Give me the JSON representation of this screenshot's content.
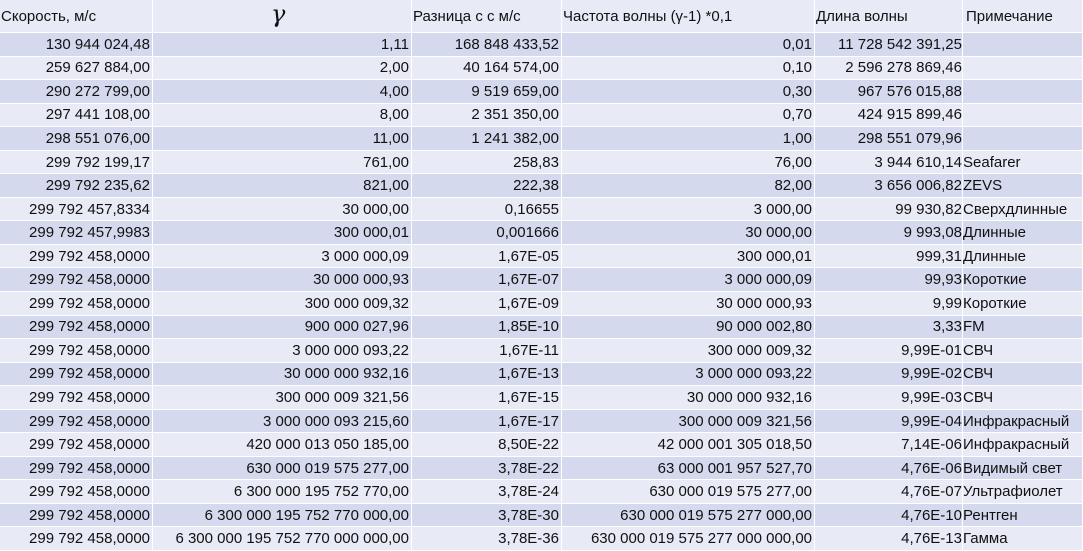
{
  "headers": {
    "speed": "Скорость, м/с",
    "gamma": "γ",
    "diff": "Разница с c м/с",
    "freq": "Частота волны (γ-1) *0,1",
    "wavelength": "Длина волны",
    "note": "Примечание"
  },
  "rows": [
    {
      "speed": "130 944 024,48",
      "gamma": "1,11",
      "diff": "168 848 433,52",
      "freq": "0,01",
      "wavelength": "11 728 542 391,25",
      "note": ""
    },
    {
      "speed": "259 627 884,00",
      "gamma": "2,00",
      "diff": "40 164 574,00",
      "freq": "0,10",
      "wavelength": "2 596 278 869,46",
      "note": ""
    },
    {
      "speed": "290 272 799,00",
      "gamma": "4,00",
      "diff": "9 519 659,00",
      "freq": "0,30",
      "wavelength": "967 576 015,88",
      "note": ""
    },
    {
      "speed": "297 441 108,00",
      "gamma": "8,00",
      "diff": "2 351 350,00",
      "freq": "0,70",
      "wavelength": "424 915 899,46",
      "note": ""
    },
    {
      "speed": "298 551 076,00",
      "gamma": "11,00",
      "diff": "1 241 382,00",
      "freq": "1,00",
      "wavelength": "298 551 079,96",
      "note": ""
    },
    {
      "speed": "299 792 199,17",
      "gamma": "761,00",
      "diff": "258,83",
      "freq": "76,00",
      "wavelength": "3 944 610,14",
      "note": "Seafarer"
    },
    {
      "speed": "299 792 235,62",
      "gamma": "821,00",
      "diff": "222,38",
      "freq": "82,00",
      "wavelength": "3 656 006,82",
      "note": "ZEVS"
    },
    {
      "speed": "299 792 457,8334",
      "gamma": "30 000,00",
      "diff": "0,16655",
      "freq": "3 000,00",
      "wavelength": "99 930,82",
      "note": "Сверхдлинные"
    },
    {
      "speed": "299 792 457,9983",
      "gamma": "300 000,01",
      "diff": "0,001666",
      "freq": "30 000,00",
      "wavelength": "9 993,08",
      "note": "Длинные"
    },
    {
      "speed": "299 792 458,0000",
      "gamma": "3 000 000,09",
      "diff": "1,67E-05",
      "freq": "300 000,01",
      "wavelength": "999,31",
      "note": "Длинные"
    },
    {
      "speed": "299 792 458,0000",
      "gamma": "30 000 000,93",
      "diff": "1,67E-07",
      "freq": "3 000 000,09",
      "wavelength": "99,93",
      "note": "Короткие"
    },
    {
      "speed": "299 792 458,0000",
      "gamma": "300 000 009,32",
      "diff": "1,67E-09",
      "freq": "30 000 000,93",
      "wavelength": "9,99",
      "note": "Короткие"
    },
    {
      "speed": "299 792 458,0000",
      "gamma": "900 000 027,96",
      "diff": "1,85E-10",
      "freq": "90 000 002,80",
      "wavelength": "3,33",
      "note": "FM"
    },
    {
      "speed": "299 792 458,0000",
      "gamma": "3 000 000 093,22",
      "diff": "1,67E-11",
      "freq": "300 000 009,32",
      "wavelength": "9,99E-01",
      "note": "СВЧ"
    },
    {
      "speed": "299 792 458,0000",
      "gamma": "30 000 000 932,16",
      "diff": "1,67E-13",
      "freq": "3 000 000 093,22",
      "wavelength": "9,99E-02",
      "note": "СВЧ"
    },
    {
      "speed": "299 792 458,0000",
      "gamma": "300 000 009 321,56",
      "diff": "1,67E-15",
      "freq": "30 000 000 932,16",
      "wavelength": "9,99E-03",
      "note": "СВЧ"
    },
    {
      "speed": "299 792 458,0000",
      "gamma": "3 000 000 093 215,60",
      "diff": "1,67E-17",
      "freq": "300 000 009 321,56",
      "wavelength": "9,99E-04",
      "note": "Инфракрасный"
    },
    {
      "speed": "299 792 458,0000",
      "gamma": "420 000 013 050 185,00",
      "diff": "8,50E-22",
      "freq": "42 000 001 305 018,50",
      "wavelength": "7,14E-06",
      "note": "Инфракрасный"
    },
    {
      "speed": "299 792 458,0000",
      "gamma": "630 000 019 575 277,00",
      "diff": "3,78E-22",
      "freq": "63 000 001 957 527,70",
      "wavelength": "4,76E-06",
      "note": "Видимый свет"
    },
    {
      "speed": "299 792 458,0000",
      "gamma": "6 300 000 195 752 770,00",
      "diff": "3,78E-24",
      "freq": "630 000 019 575 277,00",
      "wavelength": "4,76E-07",
      "note": "Ультрафиолет"
    },
    {
      "speed": "299 792 458,0000",
      "gamma": "6 300 000 195 752 770 000,00",
      "diff": "3,78E-30",
      "freq": "630 000 019 575 277 000,00",
      "wavelength": "4,76E-10",
      "note": "Рентген"
    },
    {
      "speed": "299 792 458,0000",
      "gamma": "6 300 000 195 752 770 000 000,00",
      "diff": "3,78E-36",
      "freq": "630 000 019 575 277 000 000,00",
      "wavelength": "4,76E-13",
      "note": "Гамма"
    }
  ]
}
